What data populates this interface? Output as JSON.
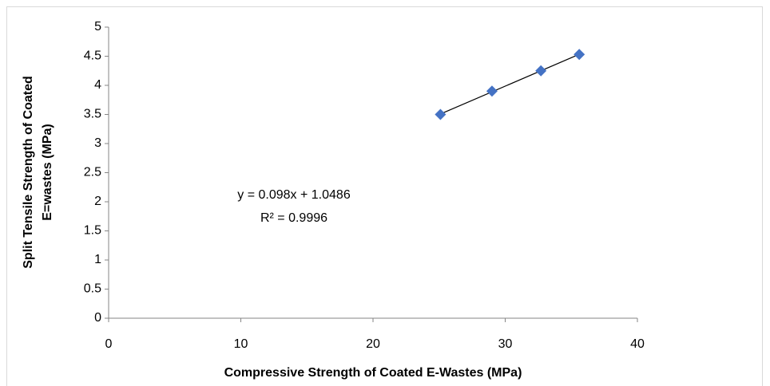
{
  "chart_data": {
    "type": "scatter",
    "x_label": "Compressive Strength of Coated E-Wastes (MPa)",
    "y_label": [
      "Split Tensile Strength of Coated",
      "E=wastes  (MPa)"
    ],
    "annotation": [
      "y = 0.098x + 1.0486",
      "R² = 0.9996"
    ],
    "trendline": "linear",
    "series": [
      {
        "color": "#4472c4",
        "x": [
          25.1,
          29.0,
          32.7,
          35.6
        ],
        "values": [
          3.5,
          3.9,
          4.25,
          4.53
        ]
      }
    ],
    "xlim": [
      0,
      40
    ],
    "xticks": [
      0,
      10,
      20,
      30,
      40
    ],
    "ylim": [
      0,
      5
    ],
    "yticks": [
      0,
      0.5,
      1,
      1.5,
      2,
      2.5,
      3,
      3.5,
      4,
      4.5,
      5
    ],
    "grid": false
  }
}
